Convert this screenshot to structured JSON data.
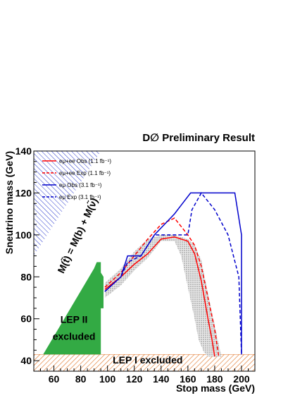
{
  "chart_data": {
    "type": "line",
    "title": "D∅ Preliminary Result",
    "xlabel": "Stop mass (GeV)",
    "ylabel": "Sneutrino mass (GeV)",
    "xlim": [
      45,
      210
    ],
    "ylim": [
      35,
      140
    ],
    "xticks": [
      60,
      80,
      100,
      120,
      140,
      160,
      180,
      200
    ],
    "yticks": [
      40,
      60,
      80,
      100,
      120,
      140
    ],
    "grid": false,
    "legend_position": "top-left",
    "series": [
      {
        "name": "eμ+ee Obs (1.1 fb⁻¹)",
        "color": "#ff0000",
        "dash": "solid",
        "x": [
          98,
          110,
          120,
          130,
          140,
          150,
          160,
          165,
          170,
          175,
          178,
          180
        ],
        "y": [
          74,
          80,
          86,
          91,
          98,
          99,
          97,
          91,
          78,
          60,
          50,
          42
        ]
      },
      {
        "name": "eμ+ee Exp (1.1 fb⁻¹)",
        "color": "#ff0000",
        "dash": "dashed",
        "x": [
          98,
          110,
          120,
          130,
          140,
          150,
          160,
          165,
          170,
          175,
          180,
          183
        ],
        "y": [
          75,
          82,
          90,
          98,
          105,
          108,
          100,
          95,
          85,
          70,
          55,
          42
        ]
      },
      {
        "name": "eμ Obs (3.1 fb⁻¹)",
        "color": "#0000cc",
        "dash": "solid",
        "x": [
          98,
          110,
          115,
          125,
          135,
          150,
          162,
          195,
          200,
          200
        ],
        "y": [
          73,
          80,
          90,
          90,
          100,
          110,
          120,
          120,
          100,
          43
        ]
      },
      {
        "name": "eμ Exp (3.1 fb⁻¹)",
        "color": "#0000cc",
        "dash": "dashed",
        "x": [
          98,
          110,
          115,
          125,
          135,
          145,
          160,
          163,
          170,
          180,
          190,
          198,
          200
        ],
        "y": [
          73,
          80,
          87,
          90,
          100,
          100,
          100,
          112,
          120,
          112,
          100,
          80,
          43
        ]
      }
    ],
    "regions": {
      "lep1_label": "LEP I excluded",
      "lep1_ymax": 43,
      "lep2_label_line1": "LEP II",
      "lep2_label_line2": "excluded",
      "lep2_x": [
        52,
        90,
        92,
        95,
        95,
        97,
        97,
        95,
        95
      ],
      "lep2_y": [
        43,
        84,
        87,
        87,
        82,
        80,
        65,
        65,
        43
      ],
      "kinematic_label": "M(t̃) = M(b) + M(ν̃)",
      "kinematic_x": [
        45,
        45,
        95,
        45
      ],
      "kinematic_y": [
        40,
        140,
        140,
        90
      ]
    },
    "band_upper": {
      "x": [
        98,
        110,
        120,
        130,
        140,
        150,
        160,
        165,
        170,
        175,
        180,
        185
      ],
      "y": [
        77,
        84,
        92,
        98,
        100,
        100,
        98,
        95,
        88,
        72,
        57,
        42
      ]
    },
    "band_lower": {
      "x": [
        98,
        110,
        120,
        130,
        140,
        150,
        155,
        160,
        165,
        168,
        172,
        175
      ],
      "y": [
        70,
        76,
        83,
        89,
        97,
        97,
        90,
        75,
        60,
        50,
        44,
        42
      ]
    }
  }
}
